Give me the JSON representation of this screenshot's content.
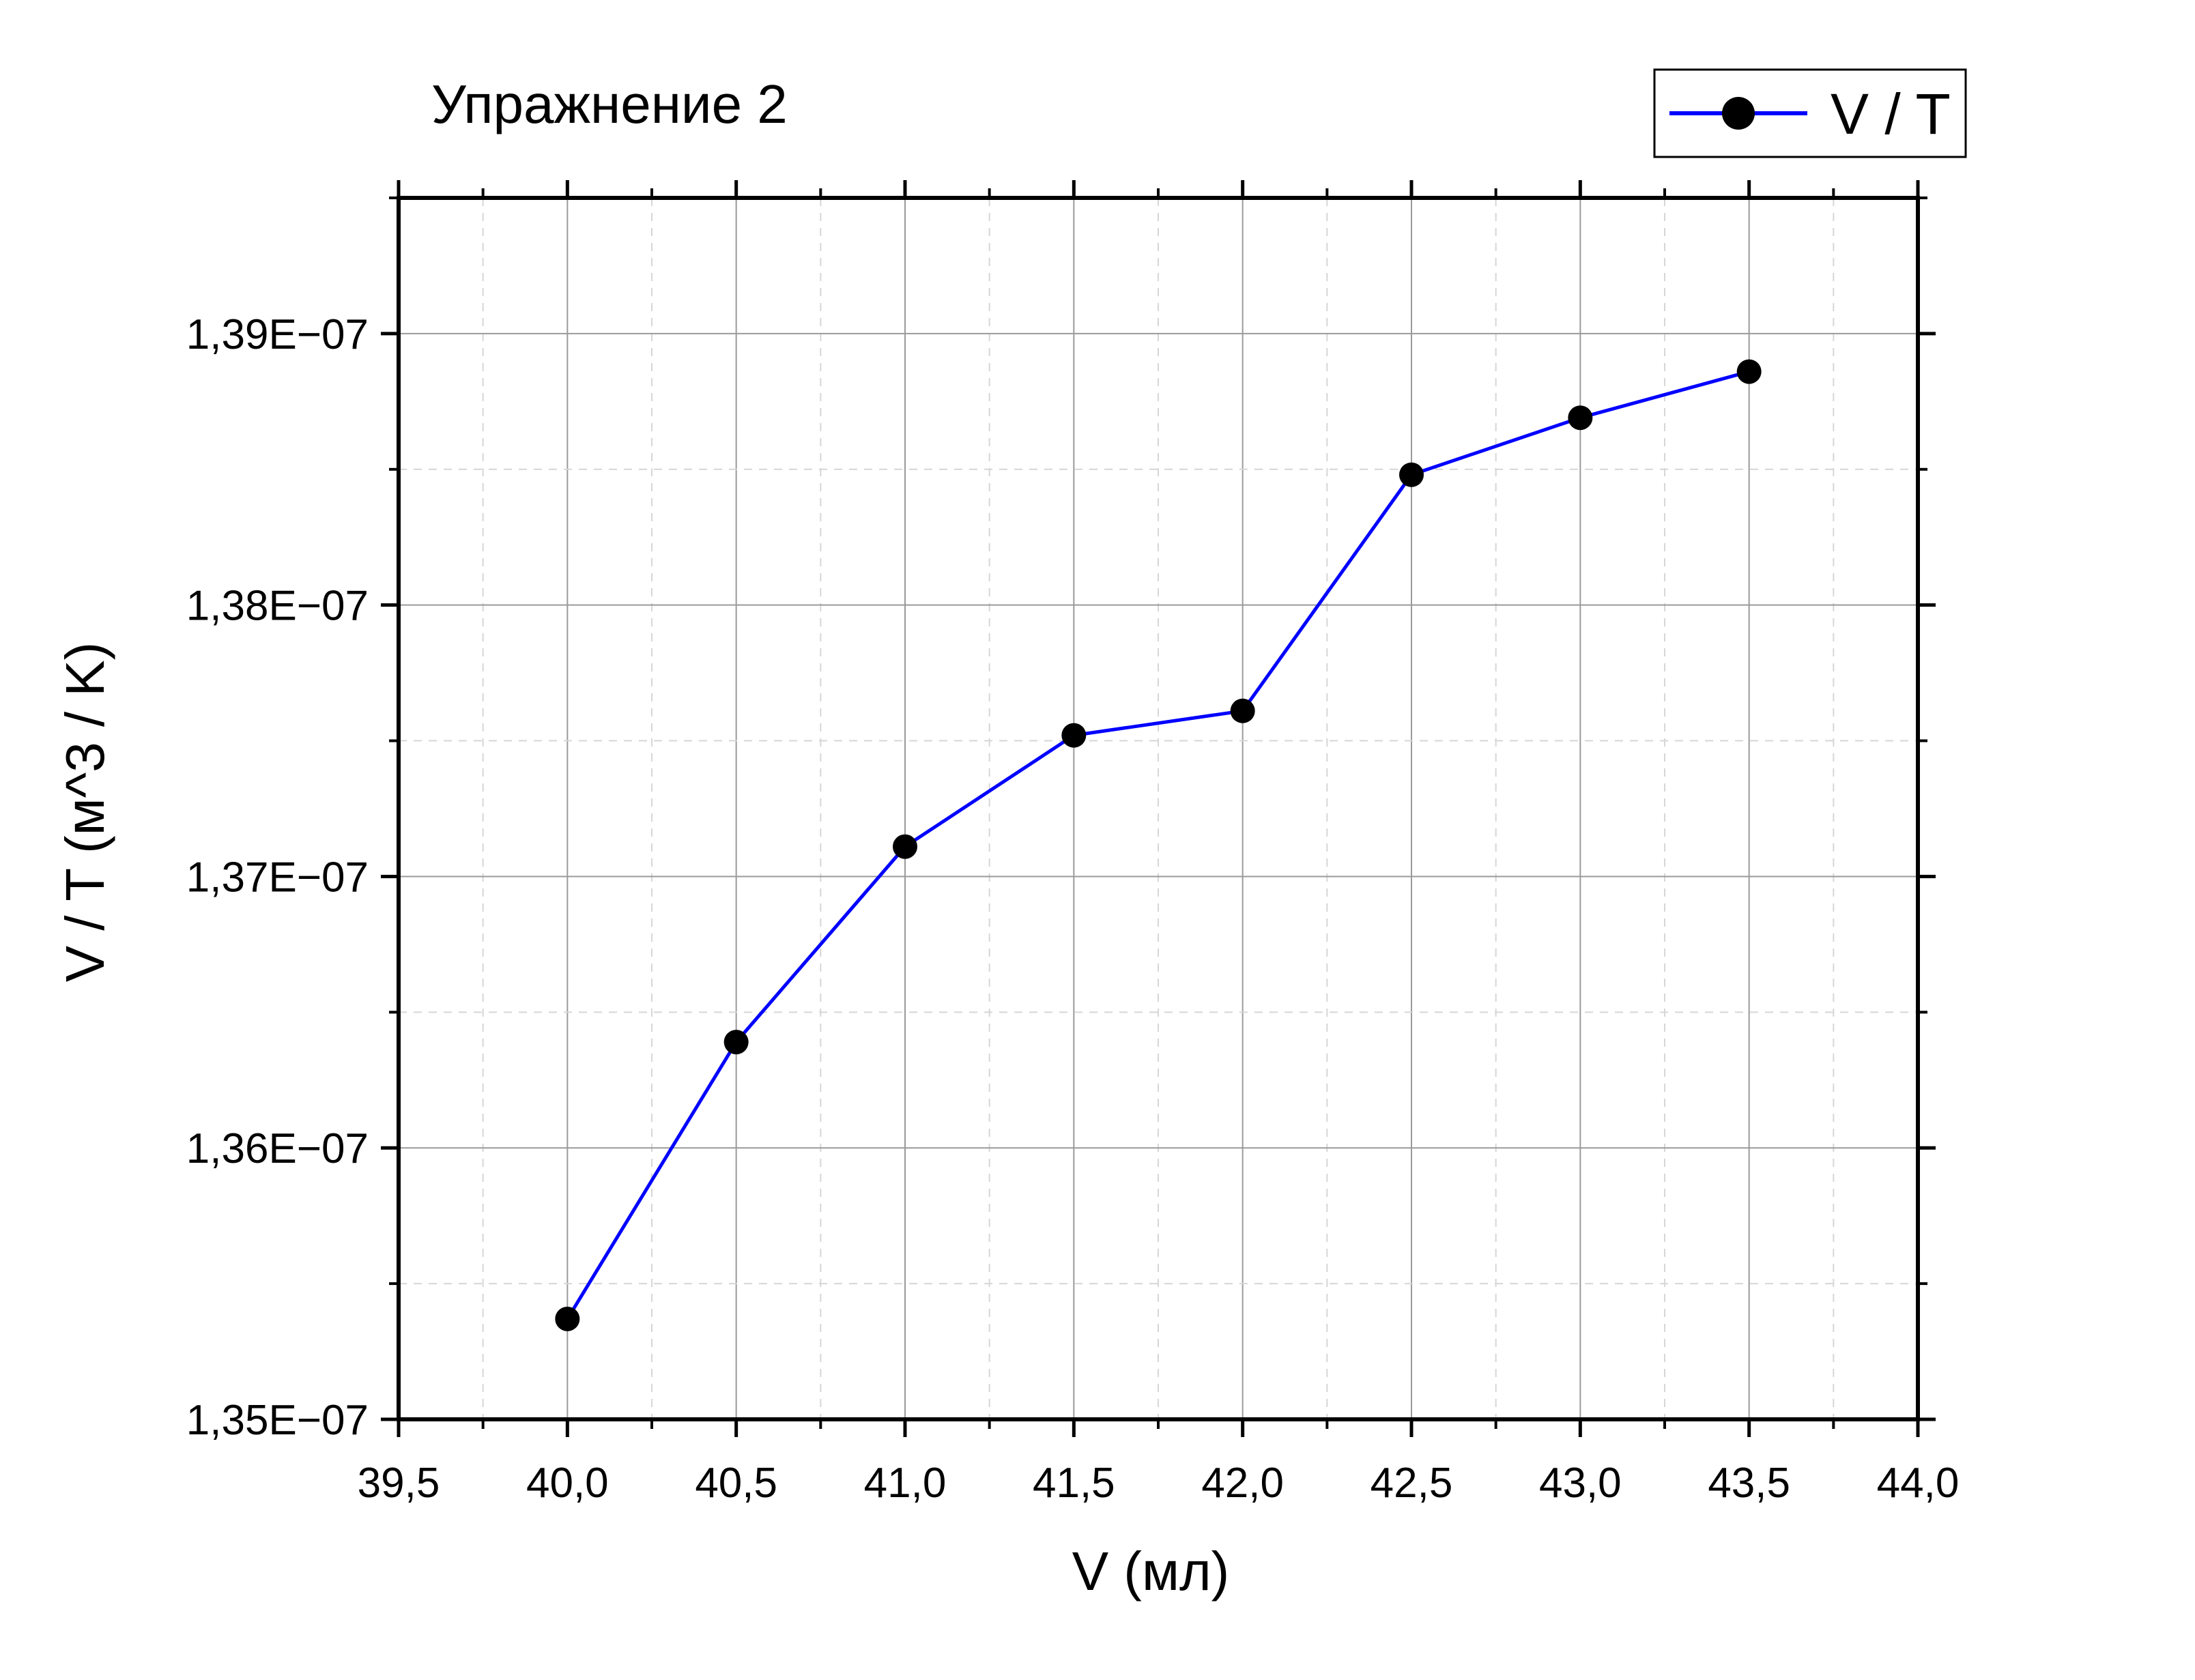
{
  "chart_data": {
    "type": "line",
    "title": "Упражнение 2",
    "xlabel": "V (мл)",
    "ylabel": "V / T (м^3 / K)",
    "xlim": [
      39.5,
      44.0
    ],
    "ylim": [
      1.35e-07,
      1.395e-07
    ],
    "x_ticks": [
      39.5,
      40.0,
      40.5,
      41.0,
      41.5,
      42.0,
      42.5,
      43.0,
      43.5,
      44.0
    ],
    "x_tick_labels": [
      "39,5",
      "40,0",
      "40,5",
      "41,0",
      "41,5",
      "42,0",
      "42,5",
      "43,0",
      "43,5",
      "44,0"
    ],
    "y_ticks": [
      1.35e-07,
      1.36e-07,
      1.37e-07,
      1.38e-07,
      1.39e-07
    ],
    "y_tick_labels": [
      "1,35E−07",
      "1,36E−07",
      "1,37E−07",
      "1,38E−07",
      "1,39E−07"
    ],
    "grid": true,
    "legend_position": "top-right",
    "series": [
      {
        "name": "V / T",
        "line_color": "#0000ff",
        "marker_color": "#000000",
        "x": [
          40.0,
          40.5,
          41.0,
          41.5,
          42.0,
          42.5,
          43.0,
          43.5
        ],
        "y": [
          1.3537e-07,
          1.3639e-07,
          1.3711e-07,
          1.3752e-07,
          1.3761e-07,
          1.3848e-07,
          1.3869e-07,
          1.3886e-07
        ]
      }
    ]
  }
}
